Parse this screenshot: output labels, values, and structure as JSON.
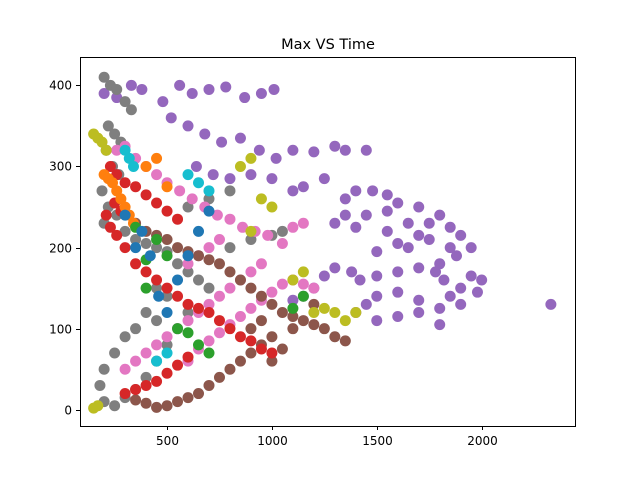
{
  "chart_data": {
    "type": "scatter",
    "title": "Max VS Time",
    "xlabel": "",
    "ylabel": "",
    "xlim": [
      85,
      2445
    ],
    "ylim": [
      -20,
      435
    ],
    "xticks": [
      500,
      1000,
      1500,
      2000
    ],
    "yticks": [
      0,
      100,
      200,
      300,
      400
    ],
    "grid": false,
    "series": [
      {
        "color": "#9467bd",
        "points": [
          [
            200,
            390
          ],
          [
            260,
            385
          ],
          [
            330,
            400
          ],
          [
            380,
            395
          ],
          [
            480,
            380
          ],
          [
            560,
            400
          ],
          [
            620,
            390
          ],
          [
            700,
            395
          ],
          [
            780,
            398
          ],
          [
            870,
            385
          ],
          [
            950,
            390
          ],
          [
            1010,
            395
          ],
          [
            520,
            360
          ],
          [
            600,
            350
          ],
          [
            680,
            340
          ],
          [
            760,
            330
          ],
          [
            850,
            335
          ],
          [
            940,
            320
          ],
          [
            1020,
            310
          ],
          [
            1100,
            320
          ],
          [
            1200,
            318
          ],
          [
            1300,
            325
          ],
          [
            1350,
            320
          ],
          [
            1450,
            320
          ],
          [
            640,
            300
          ],
          [
            720,
            290
          ],
          [
            800,
            285
          ],
          [
            900,
            290
          ],
          [
            1000,
            285
          ],
          [
            1100,
            270
          ],
          [
            1150,
            275
          ],
          [
            1250,
            285
          ],
          [
            1350,
            260
          ],
          [
            1400,
            270
          ],
          [
            1480,
            270
          ],
          [
            1550,
            265
          ],
          [
            1600,
            255
          ],
          [
            1700,
            250
          ],
          [
            1750,
            230
          ],
          [
            1800,
            240
          ],
          [
            1850,
            225
          ],
          [
            1900,
            215
          ],
          [
            1950,
            200
          ],
          [
            1880,
            190
          ],
          [
            1800,
            180
          ],
          [
            1700,
            175
          ],
          [
            1600,
            170
          ],
          [
            1500,
            165
          ],
          [
            1420,
            160
          ],
          [
            1380,
            170
          ],
          [
            1300,
            175
          ],
          [
            1250,
            165
          ],
          [
            1200,
            150
          ],
          [
            1150,
            140
          ],
          [
            1100,
            135
          ],
          [
            1500,
            195
          ],
          [
            1600,
            205
          ],
          [
            1550,
            220
          ],
          [
            1650,
            200
          ],
          [
            1700,
            215
          ],
          [
            1780,
            170
          ],
          [
            1820,
            160
          ],
          [
            1850,
            140
          ],
          [
            1900,
            150
          ],
          [
            1950,
            165
          ],
          [
            2000,
            160
          ],
          [
            1980,
            145
          ],
          [
            1900,
            130
          ],
          [
            1800,
            125
          ],
          [
            1700,
            135
          ],
          [
            1600,
            145
          ],
          [
            1500,
            140
          ],
          [
            1450,
            130
          ],
          [
            1400,
            120
          ],
          [
            1500,
            110
          ],
          [
            1600,
            115
          ],
          [
            1700,
            120
          ],
          [
            1800,
            105
          ],
          [
            2330,
            130
          ],
          [
            1350,
            240
          ],
          [
            1300,
            230
          ],
          [
            1400,
            225
          ],
          [
            1450,
            240
          ],
          [
            1550,
            245
          ],
          [
            1650,
            230
          ],
          [
            1750,
            210
          ],
          [
            1850,
            200
          ]
        ]
      },
      {
        "color": "#7f7f7f",
        "points": [
          [
            200,
            410
          ],
          [
            230,
            400
          ],
          [
            260,
            395
          ],
          [
            300,
            380
          ],
          [
            330,
            370
          ],
          [
            220,
            350
          ],
          [
            250,
            340
          ],
          [
            280,
            330
          ],
          [
            210,
            320
          ],
          [
            240,
            300
          ],
          [
            270,
            290
          ],
          [
            190,
            270
          ],
          [
            220,
            250
          ],
          [
            260,
            240
          ],
          [
            200,
            230
          ],
          [
            300,
            220
          ],
          [
            350,
            210
          ],
          [
            400,
            205
          ],
          [
            450,
            200
          ],
          [
            500,
            195
          ],
          [
            550,
            180
          ],
          [
            600,
            170
          ],
          [
            650,
            160
          ],
          [
            450,
            150
          ],
          [
            500,
            140
          ],
          [
            400,
            120
          ],
          [
            450,
            110
          ],
          [
            350,
            100
          ],
          [
            300,
            90
          ],
          [
            250,
            70
          ],
          [
            200,
            50
          ],
          [
            180,
            30
          ],
          [
            200,
            10
          ],
          [
            250,
            5
          ],
          [
            300,
            15
          ],
          [
            350,
            25
          ],
          [
            400,
            40
          ],
          [
            450,
            60
          ],
          [
            500,
            80
          ],
          [
            550,
            100
          ],
          [
            600,
            120
          ],
          [
            700,
            150
          ],
          [
            800,
            200
          ],
          [
            900,
            210
          ],
          [
            1000,
            215
          ],
          [
            1050,
            220
          ],
          [
            600,
            250
          ],
          [
            700,
            260
          ],
          [
            800,
            270
          ]
        ]
      },
      {
        "color": "#e377c2",
        "points": [
          [
            260,
            320
          ],
          [
            300,
            325
          ],
          [
            350,
            310
          ],
          [
            400,
            300
          ],
          [
            450,
            290
          ],
          [
            500,
            280
          ],
          [
            560,
            270
          ],
          [
            620,
            260
          ],
          [
            680,
            250
          ],
          [
            740,
            240
          ],
          [
            800,
            235
          ],
          [
            860,
            225
          ],
          [
            920,
            220
          ],
          [
            980,
            215
          ],
          [
            1050,
            205
          ],
          [
            950,
            180
          ],
          [
            900,
            170
          ],
          [
            850,
            160
          ],
          [
            800,
            150
          ],
          [
            750,
            140
          ],
          [
            700,
            130
          ],
          [
            650,
            120
          ],
          [
            600,
            110
          ],
          [
            550,
            100
          ],
          [
            500,
            90
          ],
          [
            450,
            80
          ],
          [
            400,
            70
          ],
          [
            350,
            60
          ],
          [
            300,
            50
          ],
          [
            600,
            60
          ],
          [
            650,
            75
          ],
          [
            700,
            85
          ],
          [
            750,
            95
          ],
          [
            800,
            105
          ],
          [
            850,
            115
          ],
          [
            900,
            125
          ],
          [
            950,
            135
          ],
          [
            1000,
            145
          ],
          [
            1050,
            155
          ],
          [
            1100,
            160
          ],
          [
            1150,
            155
          ],
          [
            1200,
            150
          ],
          [
            700,
            200
          ],
          [
            750,
            210
          ],
          [
            650,
            190
          ],
          [
            600,
            180
          ],
          [
            1100,
            225
          ],
          [
            1150,
            230
          ]
        ]
      },
      {
        "color": "#8c564b",
        "points": [
          [
            350,
            230
          ],
          [
            400,
            220
          ],
          [
            450,
            215
          ],
          [
            500,
            210
          ],
          [
            550,
            200
          ],
          [
            600,
            195
          ],
          [
            650,
            190
          ],
          [
            700,
            185
          ],
          [
            750,
            180
          ],
          [
            800,
            170
          ],
          [
            850,
            160
          ],
          [
            900,
            150
          ],
          [
            950,
            140
          ],
          [
            1000,
            130
          ],
          [
            1050,
            120
          ],
          [
            1100,
            115
          ],
          [
            1150,
            110
          ],
          [
            1200,
            105
          ],
          [
            1250,
            100
          ],
          [
            1300,
            90
          ],
          [
            1350,
            85
          ],
          [
            1200,
            130
          ],
          [
            1100,
            100
          ],
          [
            1000,
            90
          ],
          [
            950,
            80
          ],
          [
            900,
            70
          ],
          [
            850,
            60
          ],
          [
            800,
            50
          ],
          [
            750,
            40
          ],
          [
            700,
            30
          ],
          [
            650,
            20
          ],
          [
            600,
            15
          ],
          [
            550,
            10
          ],
          [
            500,
            5
          ],
          [
            450,
            3
          ],
          [
            400,
            8
          ],
          [
            350,
            12
          ],
          [
            1000,
            60
          ],
          [
            1050,
            75
          ],
          [
            950,
            110
          ],
          [
            900,
            100
          ]
        ]
      },
      {
        "color": "#d62728",
        "points": [
          [
            210,
            240
          ],
          [
            230,
            225
          ],
          [
            260,
            215
          ],
          [
            300,
            200
          ],
          [
            350,
            180
          ],
          [
            400,
            170
          ],
          [
            450,
            160
          ],
          [
            500,
            150
          ],
          [
            550,
            140
          ],
          [
            600,
            130
          ],
          [
            650,
            125
          ],
          [
            700,
            120
          ],
          [
            750,
            110
          ],
          [
            800,
            100
          ],
          [
            850,
            90
          ],
          [
            900,
            85
          ],
          [
            950,
            75
          ],
          [
            1000,
            70
          ],
          [
            230,
            300
          ],
          [
            260,
            290
          ],
          [
            300,
            280
          ],
          [
            350,
            275
          ],
          [
            400,
            265
          ],
          [
            450,
            255
          ],
          [
            500,
            245
          ],
          [
            550,
            235
          ],
          [
            250,
            255
          ],
          [
            280,
            245
          ],
          [
            300,
            20
          ],
          [
            350,
            25
          ],
          [
            400,
            30
          ],
          [
            450,
            35
          ],
          [
            500,
            45
          ],
          [
            550,
            55
          ],
          [
            600,
            65
          ]
        ]
      },
      {
        "color": "#bcbd22",
        "points": [
          [
            150,
            340
          ],
          [
            170,
            335
          ],
          [
            190,
            330
          ],
          [
            210,
            320
          ],
          [
            150,
            2
          ],
          [
            170,
            5
          ],
          [
            1100,
            160
          ],
          [
            1150,
            170
          ],
          [
            1200,
            120
          ],
          [
            1250,
            125
          ],
          [
            1300,
            120
          ],
          [
            1350,
            110
          ],
          [
            1400,
            120
          ],
          [
            850,
            300
          ],
          [
            900,
            310
          ],
          [
            950,
            260
          ],
          [
            1000,
            250
          ],
          [
            900,
            220
          ]
        ]
      },
      {
        "color": "#ff7f0e",
        "points": [
          [
            200,
            290
          ],
          [
            220,
            285
          ],
          [
            240,
            280
          ],
          [
            260,
            270
          ],
          [
            280,
            260
          ],
          [
            300,
            250
          ],
          [
            320,
            240
          ],
          [
            340,
            230
          ],
          [
            400,
            300
          ],
          [
            450,
            310
          ],
          [
            500,
            275
          ]
        ]
      },
      {
        "color": "#2ca02c",
        "points": [
          [
            350,
            225
          ],
          [
            400,
            185
          ],
          [
            450,
            210
          ],
          [
            500,
            190
          ],
          [
            550,
            100
          ],
          [
            600,
            95
          ],
          [
            650,
            80
          ],
          [
            700,
            70
          ],
          [
            1150,
            140
          ],
          [
            1100,
            125
          ],
          [
            400,
            150
          ]
        ]
      },
      {
        "color": "#1f77b4",
        "points": [
          [
            300,
            240
          ],
          [
            350,
            200
          ],
          [
            380,
            220
          ],
          [
            420,
            190
          ],
          [
            460,
            140
          ],
          [
            500,
            120
          ],
          [
            550,
            160
          ],
          [
            600,
            190
          ],
          [
            650,
            220
          ],
          [
            700,
            245
          ]
        ]
      },
      {
        "color": "#17becf",
        "points": [
          [
            300,
            320
          ],
          [
            320,
            310
          ],
          [
            340,
            300
          ],
          [
            600,
            290
          ],
          [
            650,
            280
          ],
          [
            700,
            270
          ],
          [
            450,
            60
          ],
          [
            500,
            70
          ]
        ]
      }
    ]
  }
}
